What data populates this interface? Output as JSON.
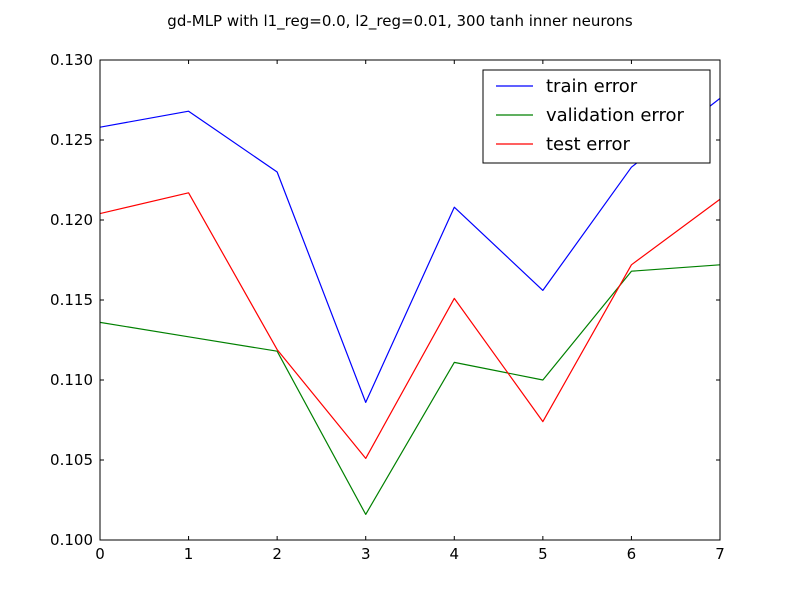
{
  "chart_data": {
    "type": "line",
    "title": "gd-MLP with l1_reg=0.0, l2_reg=0.01, 300 tanh inner neurons",
    "xlabel": "",
    "ylabel": "",
    "xlim": [
      0,
      7
    ],
    "ylim": [
      0.1,
      0.13
    ],
    "grid": false,
    "legend_position": "top-right",
    "x": [
      0,
      1,
      2,
      3,
      4,
      5,
      6,
      7
    ],
    "x_ticks": [
      "0",
      "1",
      "2",
      "3",
      "4",
      "5",
      "6",
      "7"
    ],
    "y_ticks": [
      "0.100",
      "0.105",
      "0.110",
      "0.115",
      "0.120",
      "0.125",
      "0.130"
    ],
    "series": [
      {
        "name": "train error",
        "color": "#0000ff",
        "values": [
          0.1258,
          0.1268,
          0.123,
          0.1086,
          0.1208,
          0.1156,
          0.1233,
          0.1276
        ]
      },
      {
        "name": "validation error",
        "color": "#008000",
        "values": [
          0.1136,
          0.1127,
          0.1118,
          0.1016,
          0.1111,
          0.11,
          0.1168,
          0.1172
        ]
      },
      {
        "name": "test error",
        "color": "#ff0000",
        "values": [
          0.1204,
          0.1217,
          0.1119,
          0.1051,
          0.1151,
          0.1074,
          0.1172,
          0.1213
        ]
      }
    ]
  }
}
